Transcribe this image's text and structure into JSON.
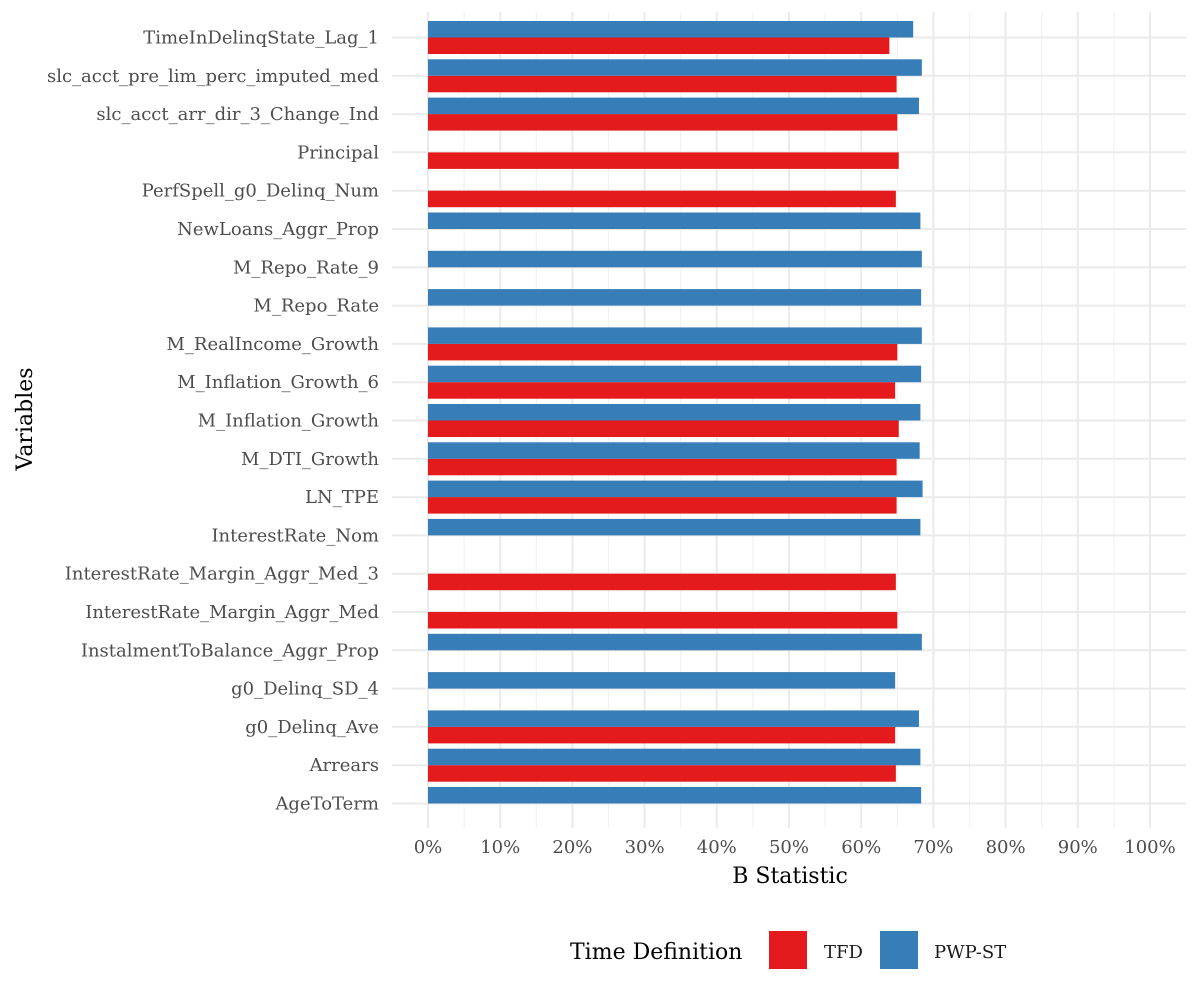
{
  "chart_data": {
    "type": "bar",
    "orientation": "horizontal",
    "xlabel": "B Statistic",
    "ylabel": "Variables",
    "xlim": [
      0,
      1
    ],
    "x_ticks": [
      "0%",
      "10%",
      "20%",
      "30%",
      "40%",
      "50%",
      "60%",
      "70%",
      "80%",
      "90%",
      "100%"
    ],
    "grid": true,
    "legend": {
      "title": "Time Definition",
      "position": "bottom"
    },
    "categories": [
      "TimeInDelinqState_Lag_1",
      "slc_acct_pre_lim_perc_imputed_med",
      "slc_acct_arr_dir_3_Change_Ind",
      "Principal",
      "PerfSpell_g0_Delinq_Num",
      "NewLoans_Aggr_Prop",
      "M_Repo_Rate_9",
      "M_Repo_Rate",
      "M_RealIncome_Growth",
      "M_Inflation_Growth_6",
      "M_Inflation_Growth",
      "M_DTI_Growth",
      "LN_TPE",
      "InterestRate_Nom",
      "InterestRate_Margin_Aggr_Med_3",
      "InterestRate_Margin_Aggr_Med",
      "InstalmentToBalance_Aggr_Prop",
      "g0_Delinq_SD_4",
      "g0_Delinq_Ave",
      "Arrears",
      "AgeToTerm"
    ],
    "series": [
      {
        "name": "TFD",
        "color": "#E41A1C",
        "values": [
          0.639,
          0.649,
          0.65,
          0.652,
          0.648,
          null,
          null,
          null,
          0.65,
          0.647,
          0.652,
          0.649,
          0.649,
          null,
          0.648,
          0.65,
          null,
          null,
          0.647,
          0.648,
          null
        ]
      },
      {
        "name": "PWP-ST",
        "color": "#377EB8",
        "values": [
          0.672,
          0.684,
          0.68,
          null,
          null,
          0.682,
          0.684,
          0.683,
          0.684,
          0.683,
          0.682,
          0.681,
          0.685,
          0.682,
          null,
          null,
          0.684,
          0.647,
          0.68,
          0.682,
          0.683
        ]
      }
    ]
  }
}
